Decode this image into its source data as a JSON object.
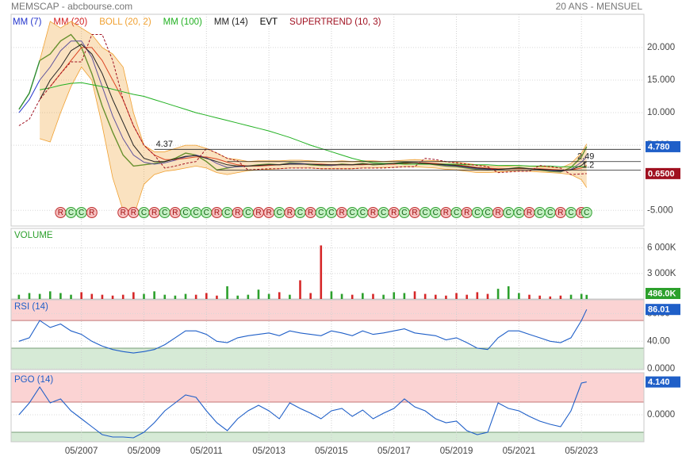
{
  "header": {
    "title": "MEMSCAP - abcbourse.com",
    "period": "20 ANS - MENSUEL"
  },
  "chart_data": [
    {
      "type": "line",
      "x": [
        "05/2005",
        "09/2005",
        "01/2006",
        "05/2006",
        "09/2006",
        "01/2007",
        "05/2007",
        "09/2007",
        "01/2008",
        "05/2008",
        "09/2008",
        "01/2009",
        "05/2009",
        "09/2009",
        "01/2010",
        "05/2010",
        "09/2010",
        "01/2011",
        "05/2011",
        "09/2011",
        "01/2012",
        "05/2012",
        "09/2012",
        "01/2013",
        "05/2013",
        "09/2013",
        "01/2014",
        "05/2014",
        "09/2014",
        "01/2015",
        "05/2015",
        "09/2015",
        "01/2016",
        "05/2016",
        "09/2016",
        "01/2017",
        "05/2017",
        "09/2017",
        "01/2018",
        "05/2018",
        "09/2018",
        "01/2019",
        "05/2019",
        "09/2019",
        "01/2020",
        "05/2020",
        "09/2020",
        "01/2021",
        "05/2021",
        "09/2021",
        "01/2022",
        "05/2022",
        "09/2022",
        "01/2023",
        "05/2023",
        "07/2023"
      ],
      "xlim": [
        "02/2005",
        "05/2025"
      ],
      "ylim": [
        -7.4,
        25.1
      ],
      "yticks": [
        {
          "value": 20,
          "label": "20.000"
        },
        {
          "value": 15,
          "label": "15.000"
        },
        {
          "value": 10,
          "label": "10.000"
        },
        {
          "value": 5,
          "label": "5.000"
        },
        {
          "value": -5,
          "label": "-5.000"
        }
      ],
      "grid": true,
      "series": [
        {
          "color": "#2e8b2e",
          "label_color": "#1f5fc8",
          "values": [
            10.5,
            13,
            18,
            19,
            21,
            22,
            20,
            16,
            11,
            7,
            3.5,
            1.8,
            2.0,
            2.2,
            2.5,
            3.0,
            3.8,
            3.5,
            2.5,
            1.2,
            1.5,
            1.8,
            1.8,
            2.0,
            2.1,
            2.0,
            2.3,
            2.2,
            2.0,
            1.9,
            1.9,
            2.1,
            2.0,
            2.2,
            2.0,
            2.1,
            2.2,
            2.4,
            2.3,
            2.2,
            2.0,
            1.8,
            1.7,
            1.5,
            1.3,
            1.2,
            1.3,
            1.4,
            1.6,
            1.4,
            1.2,
            1.0,
            0.9,
            1.6,
            3.2,
            4.78
          ],
          "value_labels": {
            "55": "4.780"
          }
        },
        {
          "name": "MM (7)",
          "color": "#2233cc",
          "values": [
            10,
            12,
            15,
            17,
            19.5,
            21,
            21,
            18.5,
            14,
            9.5,
            6,
            3.5,
            2.4,
            2.1,
            2.3,
            2.7,
            3.2,
            3.5,
            3.1,
            2.2,
            1.6,
            1.7,
            1.8,
            1.9,
            2.0,
            2.0,
            2.2,
            2.2,
            2.1,
            2.0,
            1.9,
            2.0,
            2.0,
            2.1,
            2.1,
            2.1,
            2.2,
            2.3,
            2.3,
            2.2,
            2.1,
            1.9,
            1.8,
            1.6,
            1.4,
            1.3,
            1.3,
            1.4,
            1.5,
            1.4,
            1.3,
            1.1,
            1.0,
            1.3,
            2.4,
            3.2
          ]
        },
        {
          "name": "MM (20)",
          "color": "#d42020",
          "values": [
            null,
            null,
            null,
            14,
            16,
            18,
            20,
            20,
            18,
            15,
            12,
            8,
            5,
            3.5,
            2.8,
            2.8,
            3.0,
            3.2,
            3.2,
            2.9,
            2.4,
            2.0,
            1.8,
            1.8,
            1.9,
            2.0,
            2.1,
            2.1,
            2.1,
            2.1,
            2.0,
            2.0,
            2.0,
            2.0,
            2.1,
            2.1,
            2.1,
            2.2,
            2.3,
            2.3,
            2.2,
            2.1,
            2.0,
            1.8,
            1.6,
            1.5,
            1.4,
            1.4,
            1.4,
            1.4,
            1.4,
            1.3,
            1.2,
            1.2,
            1.5,
            1.9
          ]
        },
        {
          "name": "BOLL (20, 2)",
          "color": "#f0a030",
          "upper": [
            null,
            null,
            18,
            24,
            23,
            24,
            23,
            22,
            20,
            19,
            17,
            10,
            5,
            4,
            4,
            4.5,
            5,
            5,
            4.5,
            3.8,
            3,
            2.8,
            2.5,
            2.6,
            2.6,
            2.6,
            2.7,
            2.7,
            2.6,
            2.5,
            2.5,
            2.6,
            2.5,
            2.6,
            2.6,
            2.5,
            2.6,
            2.7,
            2.8,
            2.7,
            2.6,
            2.5,
            2.4,
            2.2,
            2.0,
            1.8,
            1.7,
            1.8,
            1.9,
            1.8,
            1.7,
            1.6,
            1.5,
            2.2,
            3.8,
            5.2
          ],
          "lower": [
            null,
            null,
            6,
            5.5,
            10,
            14,
            17,
            15,
            8,
            0,
            -5,
            -6,
            -1,
            0.5,
            1,
            1.2,
            1.5,
            1.8,
            1.5,
            0.8,
            0.5,
            0.8,
            1.1,
            1.2,
            1.3,
            1.4,
            1.5,
            1.5,
            1.5,
            1.4,
            1.4,
            1.4,
            1.4,
            1.5,
            1.5,
            1.6,
            1.6,
            1.7,
            1.7,
            1.6,
            1.5,
            1.3,
            1.2,
            1.0,
            0.8,
            0.8,
            0.9,
            1.0,
            1.0,
            1.0,
            0.9,
            0.8,
            0.7,
            0.5,
            -0.3,
            -1.5
          ]
        },
        {
          "name": "MM (100)",
          "color": "#20b020",
          "values": [
            null,
            null,
            13.5,
            13.8,
            14.2,
            14.5,
            14.6,
            14.3,
            14.0,
            13.6,
            13.2,
            12.8,
            12.5,
            12.0,
            11.5,
            11.0,
            10.5,
            10.0,
            9.6,
            9.2,
            8.8,
            8.4,
            8.0,
            7.6,
            7.2,
            6.7,
            6.2,
            5.6,
            5.0,
            4.5,
            4.0,
            3.5,
            3.0,
            2.6,
            2.3,
            2.2,
            2.2,
            2.1,
            2.1,
            2.1,
            2.1,
            2.1,
            2.1,
            2.0,
            2.0,
            2.0,
            1.9,
            1.9,
            1.9,
            1.8,
            1.8,
            1.8,
            1.7,
            1.7,
            1.7,
            1.7
          ]
        },
        {
          "name": "MM (14)",
          "color": "#222222",
          "values": [
            null,
            null,
            12,
            15,
            17,
            19.5,
            20.5,
            19,
            16,
            12,
            8.5,
            5,
            3,
            2.5,
            2.5,
            2.9,
            3.3,
            3.4,
            3.0,
            2.5,
            2.0,
            1.8,
            1.8,
            1.9,
            2.0,
            2.0,
            2.1,
            2.1,
            2.1,
            2.0,
            2.0,
            2.0,
            2.0,
            2.1,
            2.1,
            2.1,
            2.2,
            2.3,
            2.3,
            2.2,
            2.1,
            2.0,
            1.9,
            1.7,
            1.5,
            1.4,
            1.3,
            1.4,
            1.5,
            1.4,
            1.3,
            1.2,
            1.1,
            1.2,
            1.9,
            2.5
          ]
        },
        {
          "name": "EVT",
          "color": "#000000",
          "kind": "events",
          "x": [
            "09/2006",
            "01/2007",
            "05/2007",
            "09/2007",
            "09/2008",
            "01/2009",
            "05/2009",
            "09/2009",
            "01/2010",
            "05/2010",
            "09/2010",
            "01/2011",
            "05/2011",
            "09/2011",
            "01/2012",
            "05/2012",
            "09/2012",
            "01/2013",
            "05/2013",
            "09/2013",
            "01/2014",
            "05/2014",
            "09/2014",
            "01/2015",
            "05/2015",
            "09/2015",
            "01/2016",
            "05/2016",
            "09/2016",
            "01/2017",
            "05/2017",
            "09/2017",
            "01/2018",
            "05/2018",
            "09/2018",
            "01/2019",
            "05/2019",
            "09/2019",
            "01/2020",
            "05/2020",
            "09/2020",
            "01/2021",
            "05/2021",
            "09/2021",
            "01/2022",
            "05/2022",
            "09/2022",
            "01/2023",
            "05/2023",
            "07/2023"
          ],
          "labels": [
            "R",
            "C",
            "C",
            "R",
            "R",
            "R",
            "C",
            "R",
            "C",
            "R",
            "C",
            "C",
            "C",
            "R",
            "C",
            "R",
            "C",
            "R",
            "R",
            "C",
            "R",
            "C",
            "R",
            "C",
            "C",
            "R",
            "C",
            "C",
            "R",
            "C",
            "R",
            "C",
            "R",
            "C",
            "C",
            "R",
            "C",
            "R",
            "C",
            "C",
            "R",
            "C",
            "C",
            "R",
            "C",
            "C",
            "R",
            "C",
            "R",
            "C"
          ]
        },
        {
          "name": "SUPERTREND (10, 3)",
          "color": "#a01020",
          "values": [
            8,
            9,
            12,
            14,
            16,
            17.8,
            17.8,
            22,
            22,
            18,
            12,
            8,
            5,
            3.5,
            1.5,
            1.8,
            2.2,
            2.5,
            4.5,
            3.8,
            3.0,
            2.6,
            1.2,
            1.3,
            1.4,
            1.4,
            1.5,
            1.5,
            1.5,
            1.4,
            1.4,
            1.4,
            1.4,
            1.5,
            1.5,
            1.5,
            1.6,
            1.7,
            1.7,
            3.0,
            2.8,
            2.5,
            2.3,
            2.1,
            1.9,
            1.7,
            0.8,
            0.9,
            1.0,
            1.0,
            1.9,
            1.7,
            1.5,
            0.5,
            0.6,
            0.65
          ],
          "value_labels": {
            "55": "0.6500"
          }
        }
      ],
      "levels": [
        {
          "value": 4.37,
          "x": "09/2009"
        },
        {
          "value": 2.49,
          "x": "01/2012"
        },
        {
          "value": 1.2,
          "x": "09/2011"
        }
      ]
    },
    {
      "type": "bar",
      "title": "VOLUME",
      "title_color": "#2ca02c",
      "values": [
        500,
        700,
        600,
        900,
        700,
        500,
        800,
        600,
        500,
        400,
        500,
        800,
        600,
        900,
        500,
        400,
        600,
        500,
        700,
        400,
        1500,
        400,
        500,
        1100,
        600,
        800,
        500,
        2200,
        700,
        6300,
        900,
        600,
        500,
        700,
        600,
        500,
        800,
        700,
        900,
        600,
        500,
        400,
        700,
        500,
        800,
        600,
        1200,
        1500,
        700,
        500,
        400,
        300,
        400,
        500,
        600,
        486
      ],
      "value_labels": {
        "55": "486.0K"
      },
      "up_color": "#2ca02c",
      "down_color": "#d62728",
      "label_color": "#2ca02c",
      "ylim": [
        0,
        8300
      ],
      "yticks": [
        {
          "value": 6000,
          "label": "6 000K"
        },
        {
          "value": 3000,
          "label": "3 000K"
        }
      ],
      "grid": true
    },
    {
      "type": "line",
      "title": "RSI (14)",
      "title_color": "#1f5fc8",
      "color": "#1f5fc8",
      "values": [
        40,
        45,
        70,
        60,
        65,
        55,
        50,
        40,
        33,
        28,
        25,
        23,
        25,
        28,
        35,
        45,
        55,
        55,
        50,
        40,
        38,
        45,
        48,
        50,
        52,
        48,
        55,
        52,
        50,
        48,
        55,
        52,
        48,
        55,
        50,
        52,
        55,
        58,
        52,
        50,
        48,
        42,
        45,
        38,
        30,
        28,
        45,
        55,
        55,
        50,
        45,
        40,
        38,
        45,
        70,
        86.01
      ],
      "last_value_box": true,
      "ylim": [
        -1,
        100
      ],
      "yticks": [
        {
          "value": 80,
          "label": "80.00"
        },
        {
          "value": 40,
          "label": "40.00"
        },
        {
          "value": 0,
          "label": "0.0000"
        }
      ],
      "bands": {
        "upper": 70,
        "lower": 30,
        "upper_color": "#fbd3d3",
        "lower_color": "#d6ead6"
      },
      "grid": true
    },
    {
      "type": "line",
      "title": "PGO (14)",
      "title_color": "#1f5fc8",
      "color": "#1f5fc8",
      "values": [
        0,
        1.5,
        3.5,
        1.5,
        2,
        0.5,
        -0.5,
        -1.5,
        -2.5,
        -2.8,
        -2.8,
        -2.9,
        -2.2,
        -1,
        0.5,
        1.5,
        2.5,
        2.2,
        0.5,
        -1,
        -2,
        -0.5,
        0.5,
        1.2,
        0.5,
        -0.5,
        1.5,
        0.8,
        0.2,
        -0.5,
        0.5,
        0.8,
        -0.2,
        0.6,
        -0.5,
        0.2,
        0.8,
        2.0,
        1.0,
        0.5,
        -0.5,
        -1.0,
        -0.8,
        -2.0,
        -2.5,
        -2.2,
        1.5,
        0.8,
        0.5,
        -0.2,
        -0.8,
        -1.2,
        -1.5,
        0.5,
        4.0,
        4.14
      ],
      "value_labels": {
        "55": "4.140"
      },
      "ylim": [
        -3.4,
        5.3
      ],
      "yticks": [
        {
          "value": 0,
          "label": "0.0000"
        }
      ],
      "bands": {
        "upper": 1.6,
        "lower": -2.2,
        "upper_color": "#fbd3d3",
        "lower_color": "#d6ead6"
      },
      "xticks": [
        "05/2007",
        "05/2009",
        "05/2011",
        "05/2013",
        "05/2015",
        "05/2017",
        "05/2019",
        "05/2021",
        "05/2023"
      ],
      "grid": true
    }
  ]
}
